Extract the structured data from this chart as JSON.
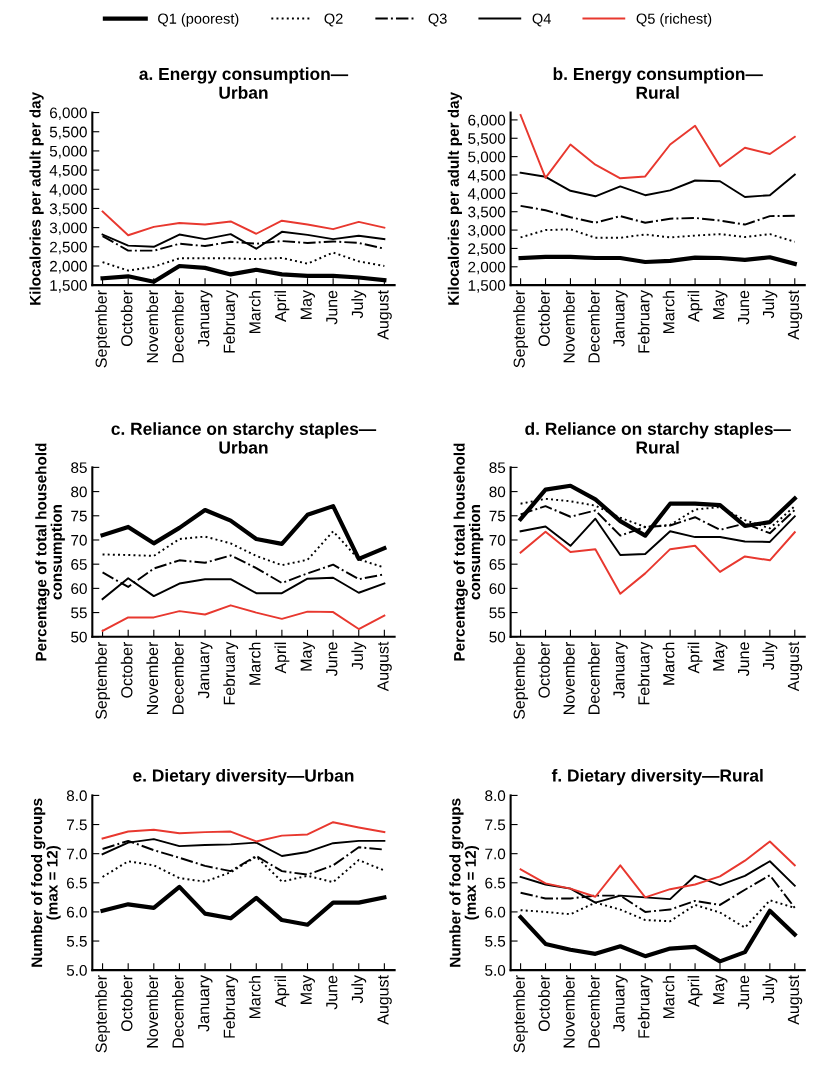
{
  "chart_data": [
    {
      "type": "line",
      "title": "a. Energy consumption—\nUrban",
      "ylabel": "Kilocalories per adult per day",
      "legend": "top",
      "grid": false,
      "categories": [
        "September",
        "October",
        "November",
        "December",
        "January",
        "February",
        "March",
        "April",
        "May",
        "June",
        "July",
        "August"
      ],
      "ylim": [
        1500,
        6000
      ],
      "yticks": [
        {
          "value": 1500,
          "label": "1,500"
        },
        {
          "value": 2000,
          "label": "2,000"
        },
        {
          "value": 2500,
          "label": "2,500"
        },
        {
          "value": 3000,
          "label": "3,000"
        },
        {
          "value": 3500,
          "label": "3,500"
        },
        {
          "value": 4000,
          "label": "4,000"
        },
        {
          "value": 4500,
          "label": "4,500"
        },
        {
          "value": 5000,
          "label": "5,000"
        },
        {
          "value": 5500,
          "label": "5,500"
        },
        {
          "value": 6000,
          "label": "6,000"
        }
      ],
      "series": [
        {
          "name": "Q1 (poorest)",
          "color": "#000000",
          "line_style": "solid",
          "values": [
            1680,
            1730,
            1590,
            2000,
            1950,
            1780,
            1900,
            1780,
            1740,
            1740,
            1700,
            1630
          ]
        },
        {
          "name": "Q2",
          "color": "#000000",
          "line_style": "dotted",
          "values": [
            2100,
            1880,
            1980,
            2200,
            2200,
            2200,
            2180,
            2210,
            2060,
            2350,
            2120,
            2000
          ]
        },
        {
          "name": "Q3",
          "color": "#000000",
          "line_style": "dashdot",
          "values": [
            2780,
            2400,
            2400,
            2580,
            2520,
            2630,
            2580,
            2650,
            2600,
            2640,
            2600,
            2450
          ]
        },
        {
          "name": "Q4",
          "color": "#000000",
          "line_style": "solid",
          "values": [
            2820,
            2530,
            2500,
            2820,
            2700,
            2830,
            2450,
            2890,
            2810,
            2700,
            2790,
            2700
          ]
        },
        {
          "name": "Q5 (richest)",
          "color": "#e8382f",
          "line_style": "solid",
          "values": [
            3420,
            2800,
            3020,
            3120,
            3080,
            3160,
            2840,
            3180,
            3080,
            2960,
            3150,
            3000
          ]
        }
      ]
    },
    {
      "type": "line",
      "title": "b. Energy consumption—\nRural",
      "ylabel": "Kilocalories per adult per day",
      "grid": false,
      "categories": [
        "September",
        "October",
        "November",
        "December",
        "January",
        "February",
        "March",
        "April",
        "May",
        "June",
        "July",
        "August"
      ],
      "ylim": [
        1500,
        6200
      ],
      "yticks": [
        {
          "value": 1500,
          "label": "1,500"
        },
        {
          "value": 2000,
          "label": "2,000"
        },
        {
          "value": 2500,
          "label": "2,500"
        },
        {
          "value": 3000,
          "label": "3,000"
        },
        {
          "value": 3500,
          "label": "3,500"
        },
        {
          "value": 4000,
          "label": "4,000"
        },
        {
          "value": 4500,
          "label": "4,500"
        },
        {
          "value": 5000,
          "label": "5,000"
        },
        {
          "value": 5500,
          "label": "5,500"
        },
        {
          "value": 6000,
          "label": "6,000"
        }
      ],
      "series": [
        {
          "color": "#000000",
          "line_style": "solid",
          "values": [
            2240,
            2270,
            2270,
            2240,
            2240,
            2130,
            2160,
            2250,
            2240,
            2190,
            2260,
            2080
          ]
        },
        {
          "color": "#000000",
          "line_style": "dotted",
          "values": [
            2800,
            3000,
            3020,
            2790,
            2790,
            2880,
            2800,
            2850,
            2890,
            2810,
            2890,
            2680
          ]
        },
        {
          "color": "#000000",
          "line_style": "dashdot",
          "values": [
            3660,
            3540,
            3350,
            3200,
            3380,
            3200,
            3310,
            3330,
            3260,
            3150,
            3380,
            3390
          ]
        },
        {
          "color": "#000000",
          "line_style": "solid",
          "values": [
            4560,
            4450,
            4070,
            3920,
            4190,
            3950,
            4080,
            4350,
            4330,
            3900,
            3950,
            4510
          ]
        },
        {
          "color": "#e8382f",
          "line_style": "solid",
          "values": [
            6130,
            4420,
            5330,
            4780,
            4410,
            4460,
            5330,
            5840,
            4740,
            5240,
            5070,
            5540
          ]
        }
      ]
    },
    {
      "type": "line",
      "title": "c. Reliance on starchy staples—\nUrban",
      "ylabel": "Percentage of total household\nconsumption",
      "grid": false,
      "categories": [
        "September",
        "October",
        "November",
        "December",
        "January",
        "February",
        "March",
        "April",
        "May",
        "June",
        "July",
        "August"
      ],
      "ylim": [
        50,
        85
      ],
      "yticks": [
        50,
        55,
        60,
        65,
        70,
        75,
        80,
        85
      ],
      "series": [
        {
          "color": "#000000",
          "line_style": "solid",
          "values": [
            71,
            72.7,
            69.3,
            72.5,
            76.2,
            74,
            70.2,
            69.2,
            75.2,
            77,
            66.1,
            68.3
          ]
        },
        {
          "color": "#000000",
          "line_style": "dotted",
          "values": [
            67,
            66.9,
            66.7,
            70.2,
            70.7,
            69.3,
            66.7,
            64.8,
            65.9,
            71.8,
            66,
            64.3
          ]
        },
        {
          "color": "#000000",
          "line_style": "dashdot",
          "values": [
            63.3,
            60.3,
            64.1,
            65.8,
            65.3,
            66.8,
            64.2,
            61.1,
            63.1,
            64.9,
            61.9,
            62.9
          ]
        },
        {
          "color": "#000000",
          "line_style": "solid",
          "values": [
            57.8,
            62.1,
            58.4,
            61,
            61.9,
            61.9,
            59,
            59,
            62,
            62.2,
            59.1,
            61
          ]
        },
        {
          "color": "#e8382f",
          "line_style": "solid",
          "values": [
            51.2,
            54,
            54,
            55.3,
            54.6,
            56.5,
            55,
            53.7,
            55.2,
            55.1,
            51.6,
            54.4
          ]
        }
      ]
    },
    {
      "type": "line",
      "title": "d. Reliance on starchy staples—\nRural",
      "ylabel": "Percentage of total household\nconsumption",
      "grid": false,
      "categories": [
        "September",
        "October",
        "November",
        "December",
        "January",
        "February",
        "March",
        "April",
        "May",
        "June",
        "July",
        "August"
      ],
      "ylim": [
        50,
        85
      ],
      "yticks": [
        50,
        55,
        60,
        65,
        70,
        75,
        80,
        85
      ],
      "series": [
        {
          "color": "#000000",
          "line_style": "solid",
          "values": [
            74.3,
            80.4,
            81.2,
            78.4,
            73.9,
            70.9,
            77.5,
            77.5,
            77.2,
            72.9,
            73.7,
            78.6
          ]
        },
        {
          "color": "#000000",
          "line_style": "dotted",
          "values": [
            77.5,
            78.5,
            78,
            77.1,
            74.6,
            72.7,
            73.1,
            76.3,
            76.8,
            74.1,
            72.4,
            77
          ]
        },
        {
          "color": "#000000",
          "line_style": "dashdot",
          "values": [
            75.3,
            77,
            74.8,
            76.1,
            70.9,
            72.7,
            73,
            74.7,
            72.1,
            73.4,
            71.4,
            76.2
          ]
        },
        {
          "color": "#000000",
          "line_style": "solid",
          "values": [
            71.8,
            72.8,
            68.8,
            74.4,
            66.9,
            67.1,
            71.8,
            70.6,
            70.6,
            69.7,
            69.6,
            74.9
          ]
        },
        {
          "color": "#e8382f",
          "line_style": "solid",
          "values": [
            67.4,
            71.7,
            67.5,
            68.1,
            58.9,
            63.1,
            68.1,
            68.8,
            63.4,
            66.6,
            65.8,
            71.6
          ]
        }
      ]
    },
    {
      "type": "line",
      "title": "e. Dietary diversity—Urban",
      "ylabel": "Number of food groups\n(max = 12)",
      "grid": false,
      "categories": [
        "September",
        "October",
        "November",
        "December",
        "January",
        "February",
        "March",
        "April",
        "May",
        "June",
        "July",
        "August"
      ],
      "ylim": [
        5,
        8
      ],
      "yticks": [
        {
          "value": 5,
          "label": "5.0"
        },
        {
          "value": 5.5,
          "label": "5.5"
        },
        {
          "value": 6,
          "label": "6.0"
        },
        {
          "value": 6.5,
          "label": "6.5"
        },
        {
          "value": 7,
          "label": "7.0"
        },
        {
          "value": 7.5,
          "label": "7.5"
        },
        {
          "value": 8,
          "label": "8.0"
        }
      ],
      "series": [
        {
          "color": "#000000",
          "line_style": "solid",
          "values": [
            6.02,
            6.13,
            6.07,
            6.43,
            5.97,
            5.89,
            6.24,
            5.86,
            5.78,
            6.16,
            6.16,
            6.25
          ]
        },
        {
          "color": "#000000",
          "line_style": "dotted",
          "values": [
            6.6,
            6.87,
            6.8,
            6.58,
            6.52,
            6.68,
            6.95,
            6.52,
            6.62,
            6.51,
            6.89,
            6.71
          ]
        },
        {
          "color": "#000000",
          "line_style": "dashdot",
          "values": [
            7.08,
            7.22,
            7.06,
            6.93,
            6.79,
            6.7,
            6.96,
            6.7,
            6.64,
            6.8,
            7.11,
            7.07
          ]
        },
        {
          "color": "#000000",
          "line_style": "solid",
          "values": [
            6.99,
            7.19,
            7.25,
            7.13,
            7.15,
            7.16,
            7.19,
            6.96,
            7.03,
            7.18,
            7.22,
            7.22
          ]
        },
        {
          "color": "#e8382f",
          "line_style": "solid",
          "values": [
            7.26,
            7.38,
            7.41,
            7.35,
            7.37,
            7.38,
            7.21,
            7.31,
            7.33,
            7.54,
            7.45,
            7.37
          ]
        }
      ]
    },
    {
      "type": "line",
      "title": "f. Dietary diversity—Rural",
      "ylabel": "Number of food groups\n(max = 12)",
      "grid": false,
      "categories": [
        "September",
        "October",
        "November",
        "December",
        "January",
        "February",
        "March",
        "April",
        "May",
        "June",
        "July",
        "August"
      ],
      "ylim": [
        5,
        8
      ],
      "yticks": [
        {
          "value": 5,
          "label": "5.0"
        },
        {
          "value": 5.5,
          "label": "5.5"
        },
        {
          "value": 6,
          "label": "6.0"
        },
        {
          "value": 6.5,
          "label": "6.5"
        },
        {
          "value": 7,
          "label": "7.0"
        },
        {
          "value": 7.5,
          "label": "7.5"
        },
        {
          "value": 8,
          "label": "8.0"
        }
      ],
      "series": [
        {
          "color": "#000000",
          "line_style": "solid",
          "values": [
            5.91,
            5.45,
            5.35,
            5.28,
            5.41,
            5.24,
            5.37,
            5.4,
            5.15,
            5.31,
            6.02,
            5.61
          ]
        },
        {
          "color": "#000000",
          "line_style": "dotted",
          "values": [
            6.03,
            6.0,
            5.96,
            6.16,
            6.04,
            5.86,
            5.84,
            6.12,
            5.99,
            5.73,
            6.2,
            6.07
          ]
        },
        {
          "color": "#000000",
          "line_style": "dashdot",
          "values": [
            6.33,
            6.23,
            6.23,
            6.28,
            6.28,
            6.0,
            6.04,
            6.19,
            6.12,
            6.38,
            6.63,
            6.07
          ]
        },
        {
          "color": "#000000",
          "line_style": "solid",
          "values": [
            6.6,
            6.47,
            6.4,
            6.16,
            6.28,
            6.25,
            6.22,
            6.62,
            6.46,
            6.62,
            6.87,
            6.45
          ]
        },
        {
          "color": "#e8382f",
          "line_style": "solid",
          "values": [
            6.73,
            6.49,
            6.4,
            6.26,
            6.8,
            6.25,
            6.39,
            6.47,
            6.61,
            6.88,
            7.21,
            6.8
          ]
        }
      ]
    }
  ]
}
